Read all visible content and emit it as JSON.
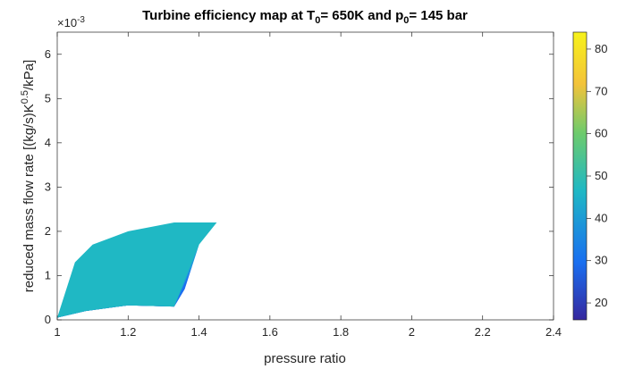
{
  "chart_data": {
    "type": "contourf",
    "title": {
      "main": "Turbine efficiency map at T",
      "t_sub": "0",
      "t_val": "= 650K and p",
      "p_sub": "0",
      "p_val": "= 145 bar"
    },
    "xlabel": "pressure ratio",
    "ylabel": {
      "base": "reduced mass flow rate [(kg/s)K",
      "sup": "0.5",
      "end": "/kPa]"
    },
    "y_exponent": {
      "base": "×10",
      "sup": "-3"
    },
    "xlim": [
      1,
      2.4
    ],
    "ylim": [
      0,
      6.5
    ],
    "xticks": [
      1,
      1.2,
      1.4,
      1.6,
      1.8,
      2,
      2.2,
      2.4
    ],
    "xtick_labels": [
      "1",
      "1.2",
      "1.4",
      "1.6",
      "1.8",
      "2",
      "2.2",
      "2.4"
    ],
    "yticks": [
      0,
      1,
      2,
      3,
      4,
      5,
      6
    ],
    "ytick_labels": [
      "0",
      "1",
      "2",
      "3",
      "4",
      "5",
      "6"
    ],
    "colorbar": {
      "range": [
        16,
        84
      ],
      "ticks": [
        20,
        30,
        40,
        50,
        60,
        70,
        80
      ],
      "tick_labels": [
        "20",
        "30",
        "40",
        "50",
        "60",
        "70",
        "80"
      ]
    },
    "colors": {
      "c20": "#35279e",
      "c27": "#2e43d6",
      "c33": "#1a6ff0",
      "c40": "#1e98de",
      "c47": "#1fb8c4",
      "c53": "#35c49b",
      "c60": "#6ecb6c",
      "c67": "#b8c24a",
      "c73": "#f3c33a",
      "c80": "#fbd72e",
      "c84": "#f7f21a"
    },
    "regions": [
      {
        "level": "c20",
        "points": [
          [
            1.0,
            0.05
          ],
          [
            1.05,
            0.4
          ],
          [
            1.15,
            0.55
          ],
          [
            1.3,
            0.55
          ],
          [
            1.33,
            0.3
          ],
          [
            1.2,
            0.33
          ],
          [
            1.08,
            0.2
          ]
        ]
      },
      {
        "level": "c27",
        "points": [
          [
            1.0,
            0.05
          ],
          [
            1.05,
            0.55
          ],
          [
            1.1,
            0.7
          ],
          [
            1.2,
            0.85
          ],
          [
            1.33,
            0.95
          ],
          [
            1.36,
            0.7
          ],
          [
            1.33,
            0.3
          ],
          [
            1.2,
            0.33
          ],
          [
            1.08,
            0.2
          ]
        ]
      },
      {
        "level": "c33",
        "points": [
          [
            1.0,
            0.05
          ],
          [
            1.05,
            0.75
          ],
          [
            1.1,
            1.0
          ],
          [
            1.2,
            1.2
          ],
          [
            1.33,
            1.35
          ],
          [
            1.38,
            1.2
          ],
          [
            1.36,
            0.7
          ],
          [
            1.33,
            0.3
          ],
          [
            1.2,
            0.33
          ],
          [
            1.08,
            0.2
          ]
        ]
      },
      {
        "level": "c40",
        "points": [
          [
            1.0,
            0.05
          ],
          [
            1.05,
            1.0
          ],
          [
            1.1,
            1.3
          ],
          [
            1.2,
            1.6
          ],
          [
            1.33,
            1.8
          ],
          [
            1.4,
            1.7
          ],
          [
            1.38,
            1.2
          ],
          [
            1.33,
            0.3
          ],
          [
            1.2,
            0.33
          ],
          [
            1.08,
            0.2
          ]
        ]
      },
      {
        "level": "c47",
        "points": [
          [
            1.0,
            0.05
          ],
          [
            1.05,
            1.3
          ],
          [
            1.1,
            1.7
          ],
          [
            1.2,
            2.0
          ],
          [
            1.33,
            2.2
          ],
          [
            1.45,
            2.2
          ],
          [
            1.4,
            1.7
          ],
          [
            1.33,
            0.3
          ],
          [
            1.2,
            0.33
          ],
          [
            1.08,
            0.2
          ]
        ]
      }
    ]
  }
}
